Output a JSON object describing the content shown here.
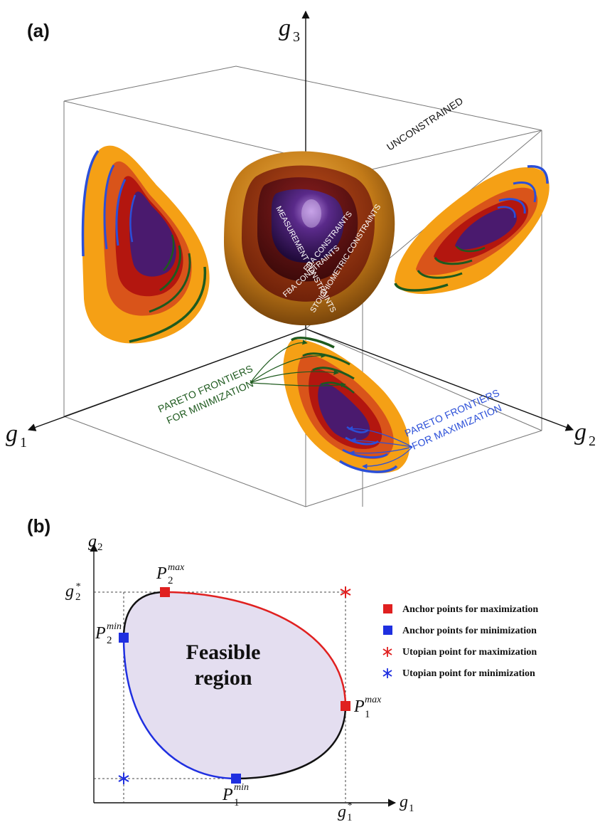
{
  "panel_a": {
    "label": "(a)",
    "axes": {
      "g1": {
        "symbol": "g",
        "subscript": "1"
      },
      "g2": {
        "symbol": "g",
        "subscript": "2"
      },
      "g3": {
        "symbol": "g",
        "subscript": "3"
      }
    },
    "unconstrained_label": "UNCONSTRAINED",
    "constraint_labels": {
      "measurement": "MEASUREMENT CONSTRAINTS",
      "eba": "EBA CONSTRAINTS",
      "fba": "FBA CONSTRAINTS",
      "stoichiometric": "STOICHIOMETRIC CONSTRAINTS"
    },
    "pareto_min": {
      "line1": "PARETO FRONTIERS",
      "line2": "FOR MINIMIZATION"
    },
    "pareto_max": {
      "line1": "PARETO FRONTIERS",
      "line2": "FOR MAXIMIZATION"
    },
    "colors": {
      "stoich": "#f5a015",
      "fba": "#d9541a",
      "eba": "#b3160f",
      "measurement": "#4a1a6e",
      "maximization": "#2b4fd8",
      "minimization": "#1e5a1e"
    }
  },
  "panel_b": {
    "label": "(b)",
    "axes": {
      "x": {
        "symbol": "g",
        "subscript": "1"
      },
      "y": {
        "symbol": "g",
        "subscript": "2"
      },
      "x_star": {
        "symbol": "g",
        "subscript": "1",
        "superscript": "*"
      },
      "y_star": {
        "symbol": "g",
        "subscript": "2",
        "superscript": "*"
      }
    },
    "region_label": {
      "line1": "Feasible",
      "line2": "region"
    },
    "points": {
      "p2max": {
        "symbol": "P",
        "subscript": "2",
        "superscript": "max"
      },
      "p2min": {
        "symbol": "P",
        "subscript": "2",
        "superscript": "min"
      },
      "p1max": {
        "symbol": "P",
        "subscript": "1",
        "superscript": "max"
      },
      "p1min": {
        "symbol": "P",
        "subscript": "1",
        "superscript": "min"
      }
    },
    "legend": [
      {
        "label": "Anchor points for maximization",
        "marker": "square",
        "color": "#e02020"
      },
      {
        "label": "Anchor points for minimization",
        "marker": "square",
        "color": "#1f2fe0"
      },
      {
        "label": "Utopian point for maximization",
        "marker": "asterisk",
        "color": "#e02020"
      },
      {
        "label": "Utopian point for minimization",
        "marker": "asterisk",
        "color": "#1f2fe0"
      }
    ],
    "colors": {
      "region_fill": "#e4def0",
      "max_curve": "#e02020",
      "min_curve": "#1f2fe0",
      "other_curve": "#111111"
    }
  }
}
